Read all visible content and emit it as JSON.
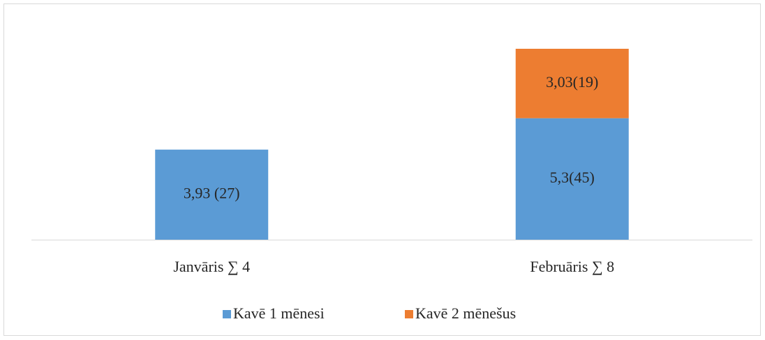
{
  "chart_data": {
    "type": "stacked_bar",
    "categories": [
      "Janvāris ∑ 4",
      "Februāris ∑ 8"
    ],
    "series": [
      {
        "name": "Kavē 1 mēnesi",
        "color": "#5b9bd5",
        "values": [
          3.93,
          5.3
        ],
        "value_labels": [
          "3,93 (27)",
          "5,3(45)"
        ]
      },
      {
        "name": "Kavē 2 mēnešus",
        "color": "#ed7d31",
        "values": [
          null,
          3.03
        ],
        "value_labels": [
          null,
          "3,03(19)"
        ]
      }
    ]
  }
}
